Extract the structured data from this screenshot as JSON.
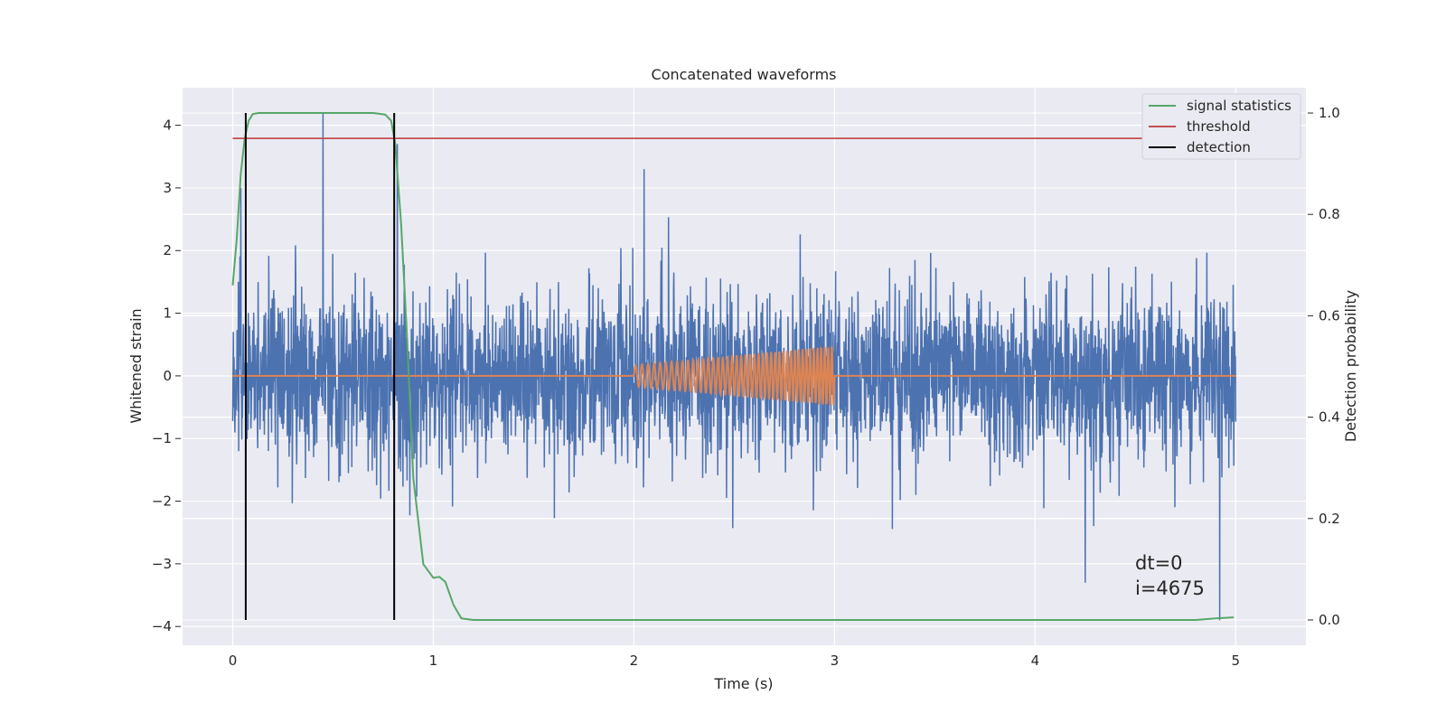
{
  "chart_data": {
    "type": "line",
    "title": "Concatenated waveforms",
    "xlabel": "Time (s)",
    "ylabel": "Whitened strain",
    "y2label": "Detection probability",
    "xlim": [
      -0.25,
      5.35
    ],
    "ylim": [
      -4.3,
      4.6
    ],
    "y2lim": [
      -0.05,
      1.05
    ],
    "xticks": [
      0,
      1,
      2,
      3,
      4,
      5
    ],
    "yticks": [
      -4,
      -3,
      -2,
      -1,
      0,
      1,
      2,
      3,
      4
    ],
    "y2ticks": [
      0.0,
      0.2,
      0.4,
      0.6,
      0.8,
      1.0
    ],
    "xtick_labels": [
      "0",
      "1",
      "2",
      "3",
      "4",
      "5"
    ],
    "ytick_labels": [
      "−4",
      "−3",
      "−2",
      "−1",
      "0",
      "1",
      "2",
      "3",
      "4"
    ],
    "y2tick_labels": [
      "0.0",
      "0.2",
      "0.4",
      "0.6",
      "0.8",
      "1.0"
    ],
    "grid": true,
    "legend_position": "top-right",
    "legend": [
      {
        "label": "signal statistics",
        "color": "#55a868"
      },
      {
        "label": "threshold",
        "color": "#c44e52"
      },
      {
        "label": "detection",
        "color": "#000000"
      }
    ],
    "annotations": [
      "dt=0",
      "i=4675"
    ],
    "series": [
      {
        "role": "whitened-strain",
        "color": "#4c72b0",
        "x_range": [
          0,
          5
        ],
        "typical_amplitude": 0.7,
        "max": 4.2,
        "min": -3.9,
        "notable_peaks": [
          {
            "x": 0.45,
            "y": 4.2
          },
          {
            "x": 0.82,
            "y": 3.7
          },
          {
            "x": 0.04,
            "y": 3.0
          },
          {
            "x": 2.05,
            "y": 3.3
          },
          {
            "x": 2.05,
            "y": 3.3
          },
          {
            "x": 4.92,
            "y": -3.9
          },
          {
            "x": 4.25,
            "y": -3.3
          }
        ]
      },
      {
        "role": "injected-chirp",
        "color": "#dd8452",
        "x_range": [
          0,
          5
        ],
        "chirp_start": 2.0,
        "chirp_end": 3.0,
        "start_amplitude": 0.17,
        "end_amplitude": 0.48,
        "cycles": 44
      },
      {
        "name": "signal statistics",
        "axis": "right",
        "color": "#55a868",
        "x": [
          0.0,
          0.02,
          0.04,
          0.06,
          0.08,
          0.1,
          0.13,
          0.2,
          0.5,
          0.7,
          0.76,
          0.79,
          0.81,
          0.84,
          0.87,
          0.9,
          0.95,
          1.0,
          1.03,
          1.06,
          1.1,
          1.14,
          1.2,
          2.0,
          3.0,
          4.0,
          4.8,
          4.9,
          4.99
        ],
        "values": [
          0.66,
          0.75,
          0.88,
          0.95,
          0.985,
          0.998,
          1.0,
          1.0,
          1.0,
          1.0,
          0.997,
          0.985,
          0.94,
          0.78,
          0.55,
          0.28,
          0.11,
          0.083,
          0.085,
          0.075,
          0.03,
          0.003,
          0.0,
          0.0,
          0.0,
          0.0,
          0.0,
          0.003,
          0.005
        ]
      },
      {
        "name": "threshold",
        "axis": "right",
        "color": "#c44e52",
        "x": [
          0,
          5
        ],
        "values": [
          0.95,
          0.95
        ]
      },
      {
        "name": "detection",
        "axis": "right",
        "color": "#000000",
        "x": [
          0.065,
          0.805
        ],
        "ymin": 0.0,
        "ymax": 1.0
      }
    ]
  }
}
